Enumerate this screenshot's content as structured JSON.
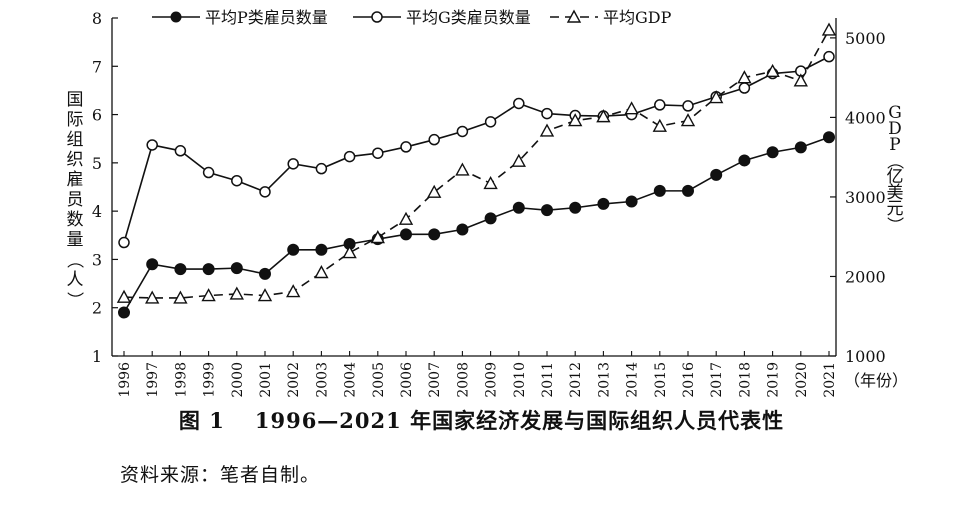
{
  "chart_data": {
    "type": "line",
    "categories": [
      "1996",
      "1997",
      "1998",
      "1999",
      "2000",
      "2001",
      "2002",
      "2003",
      "2004",
      "2005",
      "2006",
      "2007",
      "2008",
      "2009",
      "2010",
      "2011",
      "2012",
      "2013",
      "2014",
      "2015",
      "2016",
      "2017",
      "2018",
      "2019",
      "2020",
      "2021"
    ],
    "series": [
      {
        "name": "平均P类雇员数量",
        "axis": "left",
        "marker": "filled-circle",
        "line": "solid",
        "values": [
          1.9,
          2.9,
          2.8,
          2.8,
          2.82,
          2.7,
          3.2,
          3.2,
          3.32,
          3.42,
          3.52,
          3.52,
          3.62,
          3.85,
          4.07,
          4.02,
          4.07,
          4.15,
          4.2,
          4.42,
          4.42,
          4.75,
          5.05,
          5.22,
          5.32,
          5.53
        ]
      },
      {
        "name": "平均G类雇员数量",
        "axis": "left",
        "marker": "open-circle",
        "line": "solid",
        "values": [
          3.35,
          5.37,
          5.25,
          4.8,
          4.63,
          4.4,
          4.98,
          4.88,
          5.13,
          5.2,
          5.33,
          5.48,
          5.65,
          5.85,
          6.23,
          6.02,
          5.98,
          5.97,
          6.0,
          6.2,
          6.18,
          6.37,
          6.55,
          6.85,
          6.9,
          7.2
        ]
      },
      {
        "name": "平均GDP",
        "axis": "right",
        "marker": "open-triangle",
        "line": "dashed",
        "values": [
          1740,
          1730,
          1730,
          1760,
          1780,
          1760,
          1810,
          2050,
          2300,
          2490,
          2720,
          3060,
          3340,
          3170,
          3450,
          3830,
          3960,
          4010,
          4110,
          3890,
          3960,
          4250,
          4500,
          4580,
          4460,
          5100
        ]
      }
    ],
    "ylabel": "国际组织雇员数量（人）",
    "ylabel_right": "GDP（亿美元）",
    "xunit_label": "（年份）",
    "ylim": [
      1,
      8
    ],
    "yticks": [
      "1",
      "2",
      "3",
      "4",
      "5",
      "6",
      "7",
      "8"
    ],
    "ylim_right": [
      1000,
      5250
    ],
    "yticks_right": [
      "1000",
      "2000",
      "3000",
      "4000",
      "5000"
    ],
    "legend_position": "top",
    "grid": false
  },
  "caption": {
    "label": "图 1",
    "text": "1996—2021 年国家经济发展与国际组织人员代表性"
  },
  "source": "资料来源：笔者自制。"
}
